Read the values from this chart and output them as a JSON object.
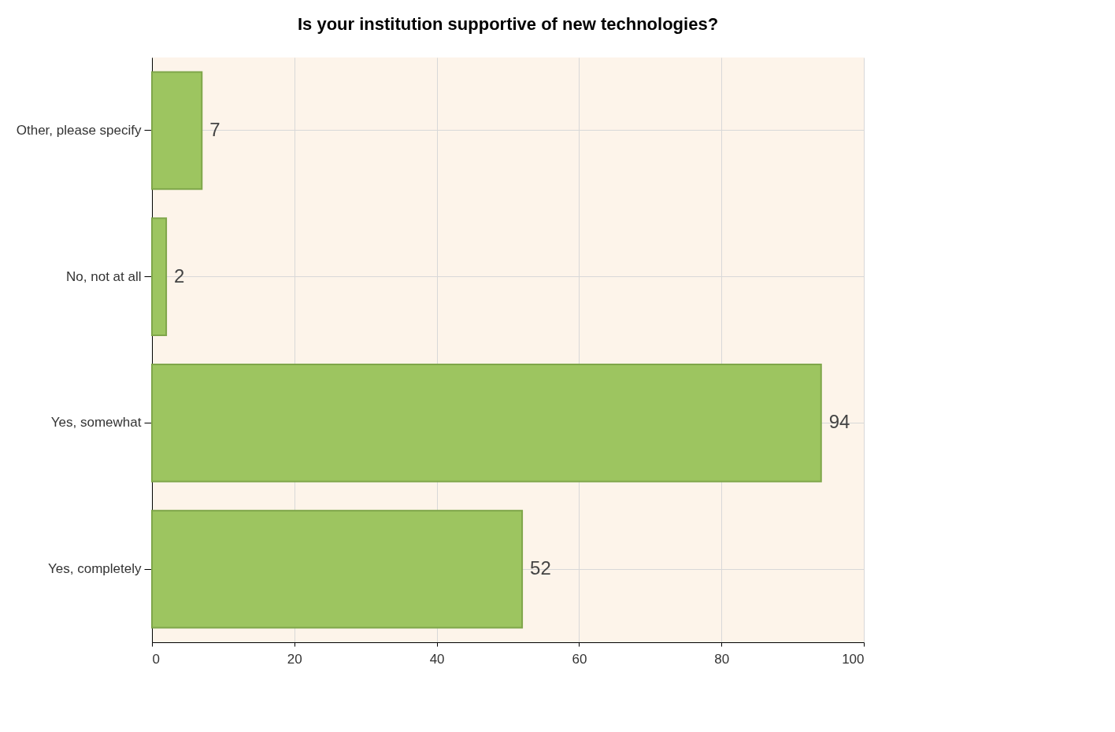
{
  "chart_data": {
    "type": "bar",
    "orientation": "horizontal",
    "title": "Is your institution supportive of new technologies?",
    "categories": [
      "Other, please specify",
      "No, not at all",
      "Yes, somewhat",
      "Yes, completely"
    ],
    "values": [
      7,
      2,
      94,
      52
    ],
    "color": "#9dc560",
    "xlim": [
      0,
      100
    ],
    "xticks": [
      0,
      20,
      40,
      60,
      80,
      100
    ],
    "grid": true,
    "data_labels": true
  }
}
